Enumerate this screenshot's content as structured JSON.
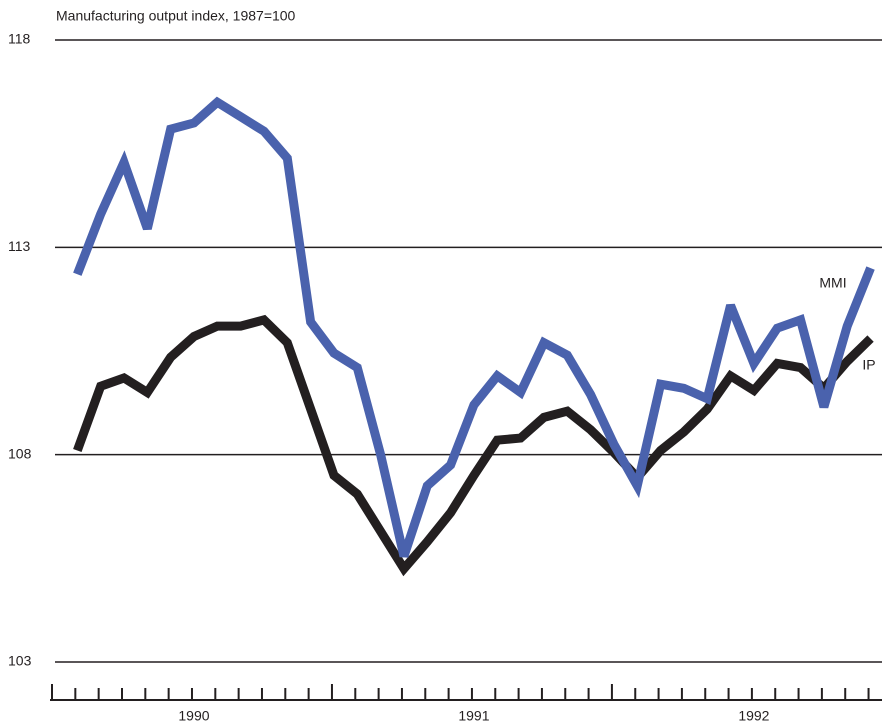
{
  "chart_data": {
    "type": "line",
    "title": "Manufacturing output index, 1987=100",
    "categories": [
      null,
      null,
      null,
      null,
      null,
      null,
      null,
      null,
      null,
      null,
      null,
      null,
      null,
      null,
      null,
      null,
      null,
      null,
      null,
      null,
      null,
      null,
      null,
      null,
      null,
      null,
      null,
      null,
      null,
      null,
      null,
      null,
      null,
      null,
      null,
      null
    ],
    "year_labels": [
      "1990",
      "1991",
      "1992"
    ],
    "series": [
      {
        "name": "MMI",
        "color": "#4a62ad",
        "values": [
          null,
          112.35,
          113.8,
          115.05,
          113.45,
          115.85,
          116.0,
          116.5,
          116.15,
          115.8,
          115.15,
          111.2,
          110.45,
          110.1,
          108.0,
          105.55,
          107.25,
          107.75,
          109.2,
          109.9,
          109.5,
          110.7,
          110.4,
          109.45,
          108.25,
          107.25,
          109.7,
          109.6,
          109.35,
          111.6,
          110.2,
          111.05,
          111.25,
          109.15,
          111.1,
          112.5
        ]
      },
      {
        "name": "IP",
        "color": "#231f20",
        "values": [
          null,
          108.1,
          109.65,
          109.85,
          109.5,
          110.35,
          110.85,
          111.1,
          111.1,
          111.25,
          110.7,
          109.1,
          107.5,
          107.05,
          106.15,
          105.25,
          105.9,
          106.6,
          107.5,
          108.35,
          108.4,
          108.9,
          109.05,
          108.6,
          108.05,
          107.45,
          108.1,
          108.55,
          109.1,
          109.9,
          109.55,
          110.2,
          110.1,
          109.6,
          110.25,
          110.8
        ]
      }
    ],
    "ylim": [
      103,
      118
    ],
    "yticks": [
      103,
      108,
      113,
      118
    ],
    "grid": true
  }
}
